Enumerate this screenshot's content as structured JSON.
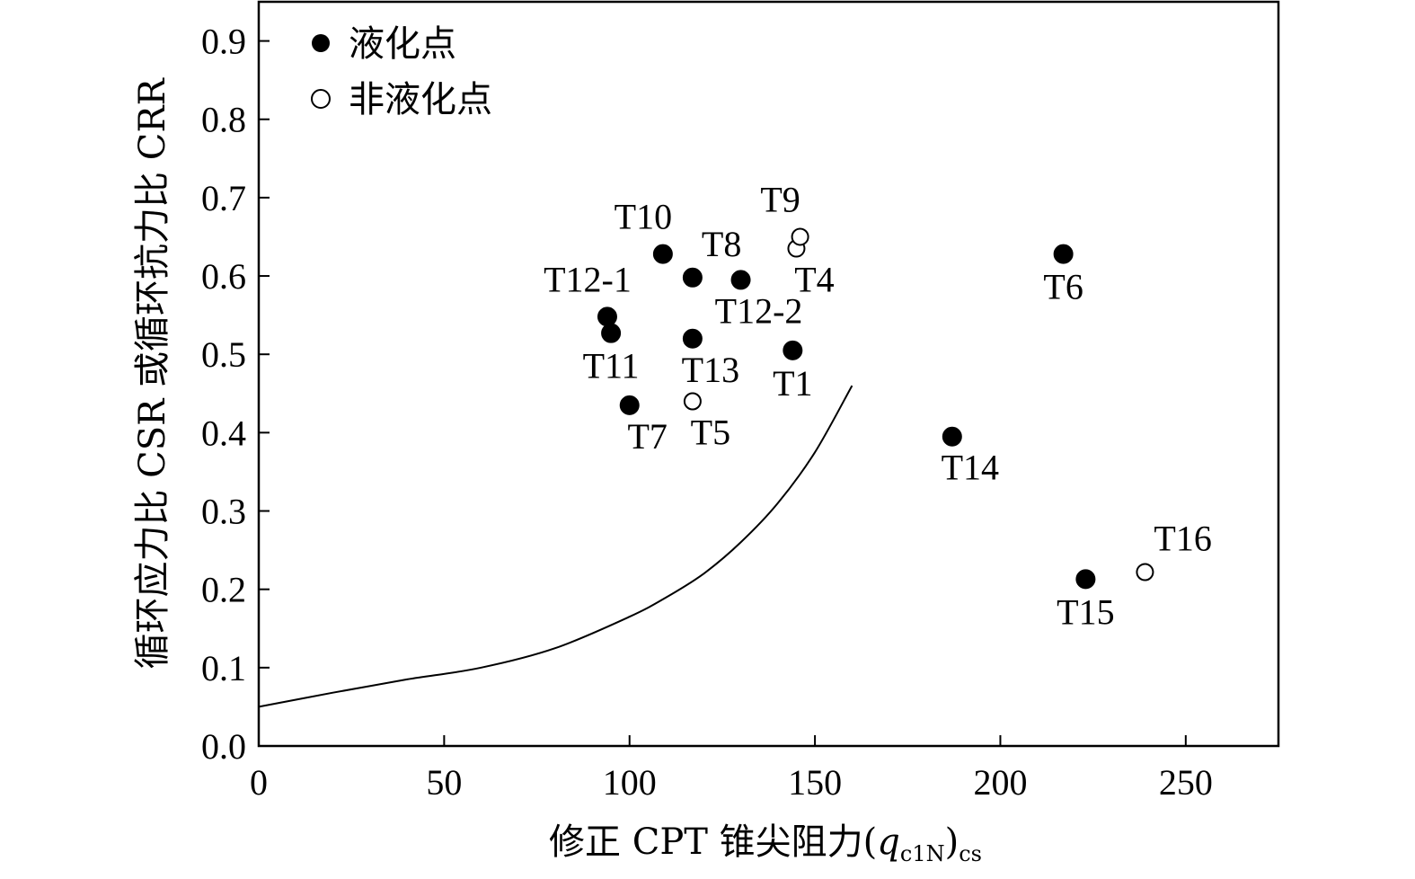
{
  "chart_data": {
    "type": "scatter",
    "xlabel": {
      "prefix": "修正 CPT 锥尖阻力(",
      "q": "q",
      "q_sub": "c1N",
      "close": ")",
      "outer_sub": "cs"
    },
    "ylabel": "循环应力比 CSR 或循环抗力比 CRR",
    "xlim": [
      0,
      275
    ],
    "ylim": [
      0,
      0.95
    ],
    "x_ticks": [
      {
        "value": 0,
        "label": "0"
      },
      {
        "value": 50,
        "label": "50"
      },
      {
        "value": 100,
        "label": "100"
      },
      {
        "value": 150,
        "label": "150"
      },
      {
        "value": 200,
        "label": "200"
      },
      {
        "value": 250,
        "label": "250"
      }
    ],
    "y_ticks": [
      {
        "value": 0.0,
        "label": "0.0"
      },
      {
        "value": 0.1,
        "label": "0.1"
      },
      {
        "value": 0.2,
        "label": "0.2"
      },
      {
        "value": 0.3,
        "label": "0.3"
      },
      {
        "value": 0.4,
        "label": "0.4"
      },
      {
        "value": 0.5,
        "label": "0.5"
      },
      {
        "value": 0.6,
        "label": "0.6"
      },
      {
        "value": 0.7,
        "label": "0.7"
      },
      {
        "value": 0.8,
        "label": "0.8"
      },
      {
        "value": 0.9,
        "label": "0.9"
      }
    ],
    "grid": false,
    "legend": {
      "placement": "top-left",
      "entries": [
        {
          "label": "液化点",
          "marker": "filled-circle"
        },
        {
          "label": "非液化点",
          "marker": "open-circle"
        }
      ]
    },
    "series": [
      {
        "name": "液化点",
        "marker": "filled-circle",
        "points": [
          {
            "label": "T1",
            "x": 144,
            "y": 0.505,
            "label_pos": "below"
          },
          {
            "label": "T6",
            "x": 217,
            "y": 0.628,
            "label_pos": "below"
          },
          {
            "label": "T7",
            "x": 100,
            "y": 0.435,
            "label_pos": "below-right"
          },
          {
            "label": "T8",
            "x": 117,
            "y": 0.598,
            "label_pos": "above-right"
          },
          {
            "label": "T10",
            "x": 109,
            "y": 0.628,
            "label_pos": "above-left"
          },
          {
            "label": "T11",
            "x": 95,
            "y": 0.527,
            "label_pos": "below"
          },
          {
            "label": "T12-1",
            "x": 94,
            "y": 0.548,
            "label_pos": "above-left"
          },
          {
            "label": "T12-2",
            "x": 130,
            "y": 0.595,
            "label_pos": "below-right"
          },
          {
            "label": "T13",
            "x": 117,
            "y": 0.52,
            "label_pos": "below-right"
          },
          {
            "label": "T14",
            "x": 187,
            "y": 0.395,
            "label_pos": "below-right"
          },
          {
            "label": "T15",
            "x": 223,
            "y": 0.213,
            "label_pos": "below"
          }
        ]
      },
      {
        "name": "非液化点",
        "marker": "open-circle",
        "points": [
          {
            "label": "T4",
            "x": 145,
            "y": 0.635,
            "label_pos": "below-right"
          },
          {
            "label": "T5",
            "x": 117,
            "y": 0.44,
            "label_pos": "below-right"
          },
          {
            "label": "T9",
            "x": 146,
            "y": 0.65,
            "label_pos": "above-left"
          },
          {
            "label": "T16",
            "x": 239,
            "y": 0.222,
            "label_pos": "above-right"
          }
        ]
      }
    ],
    "curve": {
      "points": [
        {
          "x": 0,
          "y": 0.05
        },
        {
          "x": 20,
          "y": 0.068
        },
        {
          "x": 40,
          "y": 0.085
        },
        {
          "x": 60,
          "y": 0.1
        },
        {
          "x": 80,
          "y": 0.125
        },
        {
          "x": 100,
          "y": 0.165
        },
        {
          "x": 110,
          "y": 0.19
        },
        {
          "x": 120,
          "y": 0.22
        },
        {
          "x": 130,
          "y": 0.26
        },
        {
          "x": 140,
          "y": 0.31
        },
        {
          "x": 150,
          "y": 0.375
        },
        {
          "x": 160,
          "y": 0.46
        }
      ]
    }
  }
}
